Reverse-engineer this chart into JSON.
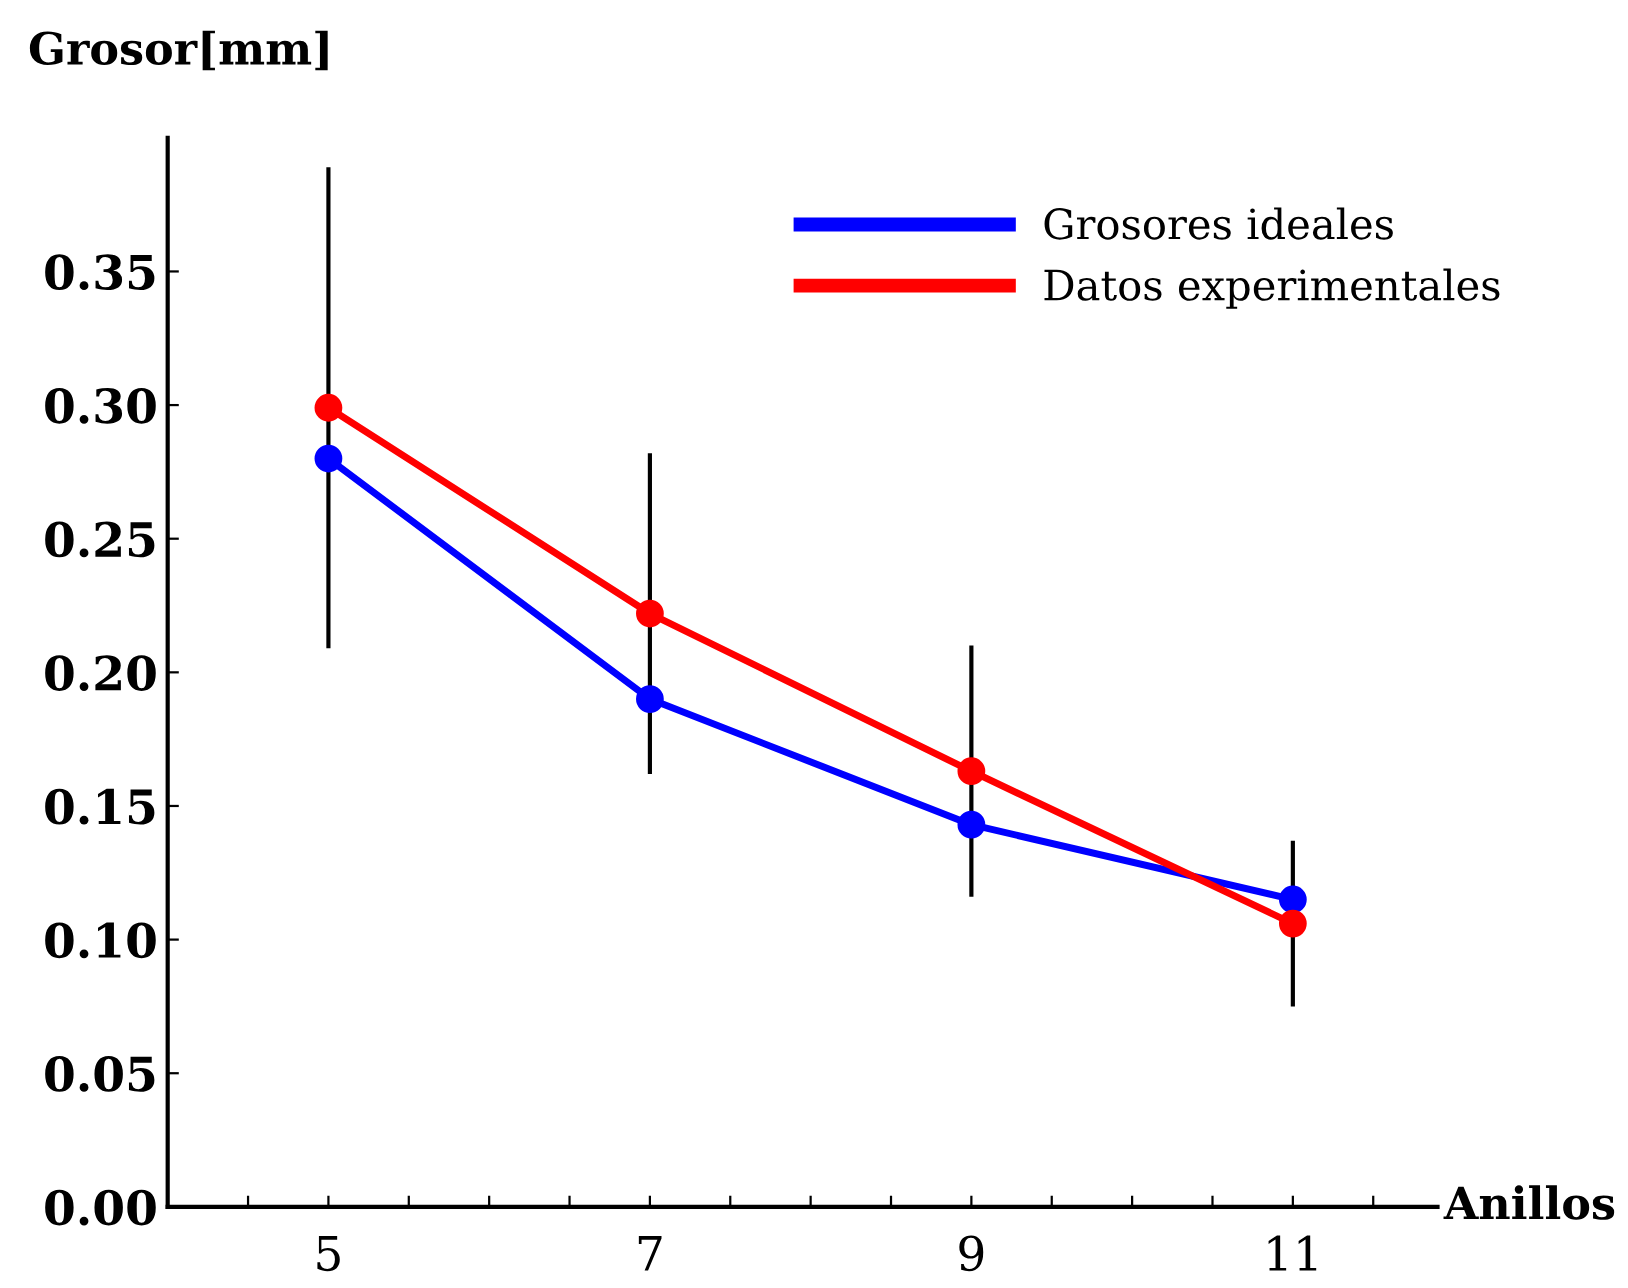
{
  "chart_data": {
    "type": "line",
    "xlabel": "Anillos",
    "ylabel": "Grosor[mm]",
    "x": [
      5,
      7,
      9,
      11
    ],
    "series": [
      {
        "name": "Grosores ideales",
        "color": "#0000ff",
        "values": [
          0.28,
          0.19,
          0.143,
          0.115
        ]
      },
      {
        "name": "Datos experimentales",
        "color": "#ff0000",
        "values": [
          0.299,
          0.222,
          0.163,
          0.106
        ],
        "errors": [
          0.09,
          0.06,
          0.047,
          0.031
        ]
      }
    ],
    "xlim": [
      4,
      11.9
    ],
    "ylim": [
      0,
      0.4
    ],
    "xticks": [
      {
        "value": 4.5,
        "label": null
      },
      5,
      {
        "value": 5.5,
        "label": null
      },
      {
        "value": 6,
        "label": null
      },
      {
        "value": 6.5,
        "label": null
      },
      7,
      {
        "value": 7.5,
        "label": null
      },
      {
        "value": 8,
        "label": null
      },
      {
        "value": 8.5,
        "label": null
      },
      9,
      {
        "value": 9.5,
        "label": null
      },
      {
        "value": 10,
        "label": null
      },
      {
        "value": 10.5,
        "label": null
      },
      11,
      {
        "value": 11.5,
        "label": null
      }
    ],
    "yticks": [
      {
        "value": 0,
        "label": "0.00"
      },
      0.05,
      {
        "value": 0.1,
        "label": "0.10"
      },
      0.15,
      {
        "value": 0.2,
        "label": "0.20"
      },
      0.25,
      {
        "value": 0.3,
        "label": "0.30"
      },
      0.35
    ],
    "marker": "circle",
    "line_style": "solid",
    "grid": false,
    "legend": "top right"
  }
}
